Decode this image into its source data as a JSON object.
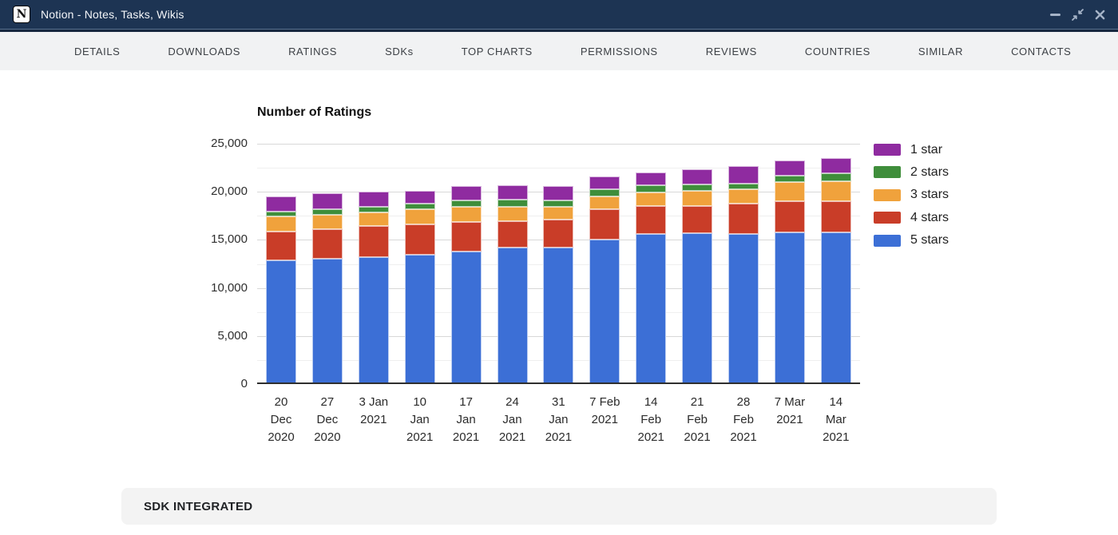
{
  "titlebar": {
    "icon_letter": "N",
    "title": "Notion - Notes, Tasks, Wikis"
  },
  "tabs": [
    "DETAILS",
    "DOWNLOADS",
    "RATINGS",
    "SDKs",
    "TOP CHARTS",
    "PERMISSIONS",
    "REVIEWS",
    "COUNTRIES",
    "SIMILAR",
    "CONTACTS"
  ],
  "sections": {
    "sdk_integrated": "SDK INTEGRATED"
  },
  "colors": {
    "titlebar_bg": "#1d3453",
    "tabbar_bg": "#f1f2f3",
    "section_header_bg": "#f3f3f3",
    "axis_line": "#2f2f2f"
  },
  "chart_data": {
    "type": "bar",
    "stacked": true,
    "title": "Number of Ratings",
    "legend_position": "right",
    "grid": true,
    "categories": [
      [
        "20",
        "Dec",
        "2020"
      ],
      [
        "27",
        "Dec",
        "2020"
      ],
      [
        "3 Jan",
        "2021"
      ],
      [
        "10",
        "Jan",
        "2021"
      ],
      [
        "17",
        "Jan",
        "2021"
      ],
      [
        "24",
        "Jan",
        "2021"
      ],
      [
        "31",
        "Jan",
        "2021"
      ],
      [
        "7 Feb",
        "2021"
      ],
      [
        "14",
        "Feb",
        "2021"
      ],
      [
        "21",
        "Feb",
        "2021"
      ],
      [
        "28",
        "Feb",
        "2021"
      ],
      [
        "7 Mar",
        "2021"
      ],
      [
        "14",
        "Mar",
        "2021"
      ]
    ],
    "series": [
      {
        "name": "1 star",
        "color": "#8f2ba0",
        "values": [
          1570,
          1710,
          1630,
          1320,
          1460,
          1460,
          1490,
          1330,
          1360,
          1530,
          1800,
          1610,
          1580
        ]
      },
      {
        "name": "2 stars",
        "color": "#3f8e3b",
        "values": [
          480,
          550,
          550,
          610,
          690,
          770,
          690,
          770,
          690,
          690,
          640,
          690,
          830
        ]
      },
      {
        "name": "3 stars",
        "color": "#f0a23c",
        "values": [
          1590,
          1520,
          1440,
          1550,
          1570,
          1440,
          1300,
          1350,
          1460,
          1600,
          1430,
          1990,
          2020
        ]
      },
      {
        "name": "4 stars",
        "color": "#c93d28",
        "values": [
          3040,
          3100,
          3260,
          3150,
          3050,
          2820,
          2960,
          3130,
          2900,
          2850,
          3180,
          3220,
          3240
        ]
      },
      {
        "name": "5 stars",
        "color": "#3c6fd6",
        "values": [
          12850,
          13010,
          13180,
          13480,
          13810,
          14170,
          14170,
          15050,
          15610,
          15660,
          15620,
          15790,
          15820
        ]
      }
    ],
    "y_axis": {
      "min": 0,
      "max": 25000,
      "major_step": 5000,
      "minor_step": 2500,
      "tick_labels": [
        "0",
        "5,000",
        "10,000",
        "15,000",
        "20,000",
        "25,000"
      ]
    }
  }
}
